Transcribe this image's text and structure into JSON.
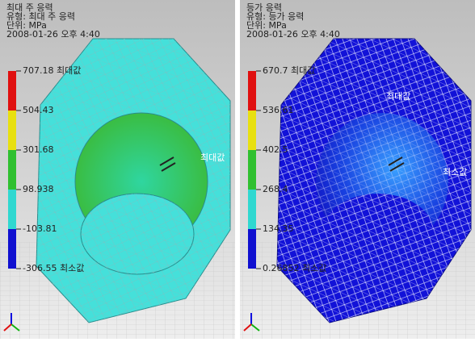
{
  "panels": [
    {
      "header": [
        "최대 주 응력",
        "유형: 최대 주 응력",
        "단위: MPa",
        "2008-01-26 오후 4:40"
      ],
      "legend": [
        "707.18 최대값",
        "504.43",
        "301.68",
        "98.938",
        "-103.81",
        "-306.55 최소값"
      ],
      "model_labels": [
        "최대값"
      ]
    },
    {
      "header": [
        "등가 응력",
        "유형: 등가 응력",
        "단위: MPa",
        "2008-01-26 오후 4:40"
      ],
      "legend": [
        "670.7 최대값",
        "536.61",
        "402.5",
        "268.4",
        "134.35",
        "0.26852 최소값"
      ],
      "model_labels": [
        "최대값",
        "최소값"
      ]
    }
  ]
}
